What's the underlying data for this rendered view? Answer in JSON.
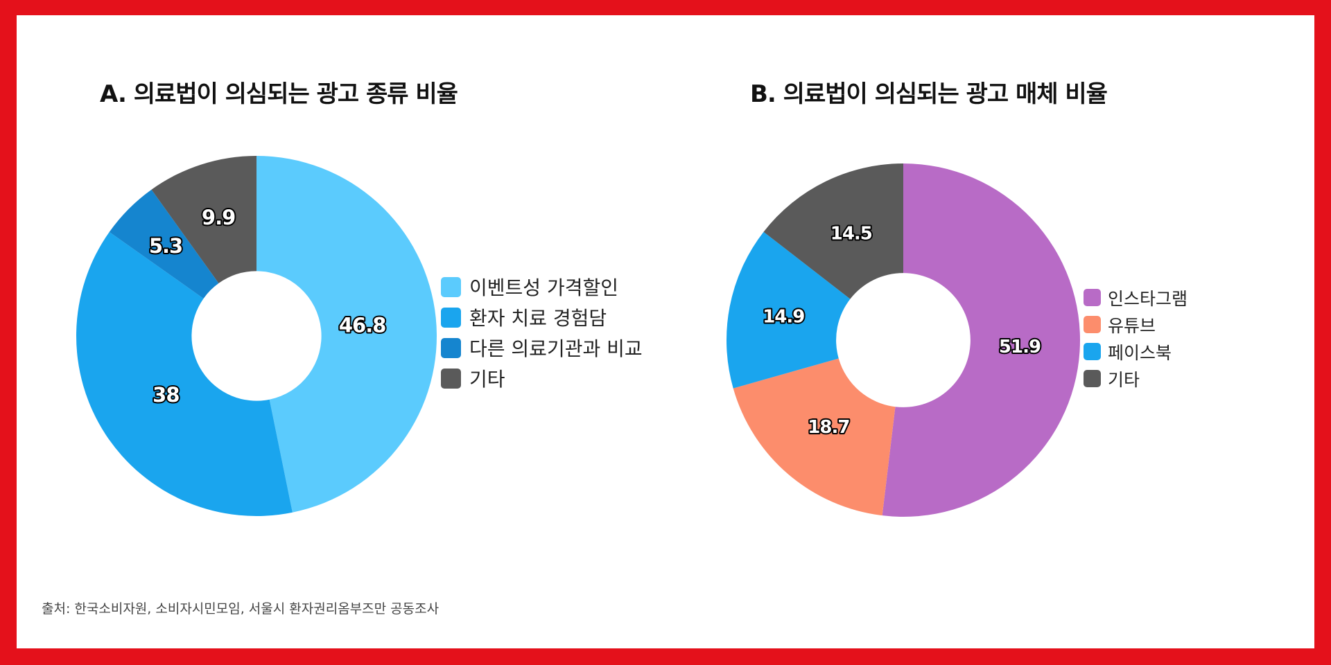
{
  "source_note": "출처: 한국소비자원, 소비자시민모임, 서울시 환자권리옴부즈만 공동조사",
  "chart_data": [
    {
      "type": "pie",
      "donut": true,
      "title": "A. 의료법이 의심되는 광고 종류 비율",
      "categories": [
        "이벤트성 가격할인",
        "환자 치료 경험담",
        "다른 의료기관과 비교",
        "기타"
      ],
      "values": [
        46.8,
        38,
        5.3,
        9.9
      ],
      "data_labels": [
        "46.8",
        "38",
        "5.3",
        "9.9"
      ],
      "colors": [
        "#5bcbfd",
        "#1aa5ee",
        "#1585cf",
        "#5a5a5a"
      ],
      "legend_position": "right"
    },
    {
      "type": "pie",
      "donut": true,
      "title": "B. 의료법이 의심되는 광고 매체 비율",
      "categories": [
        "인스타그램",
        "유튜브",
        "페이스북",
        "기타"
      ],
      "values": [
        51.9,
        18.7,
        14.9,
        14.5
      ],
      "data_labels": [
        "51.9",
        "18.7",
        "14.9",
        "14.5"
      ],
      "colors": [
        "#b86bc6",
        "#fc8d6c",
        "#1aa5ee",
        "#5a5a5a"
      ],
      "legend_position": "right"
    }
  ]
}
